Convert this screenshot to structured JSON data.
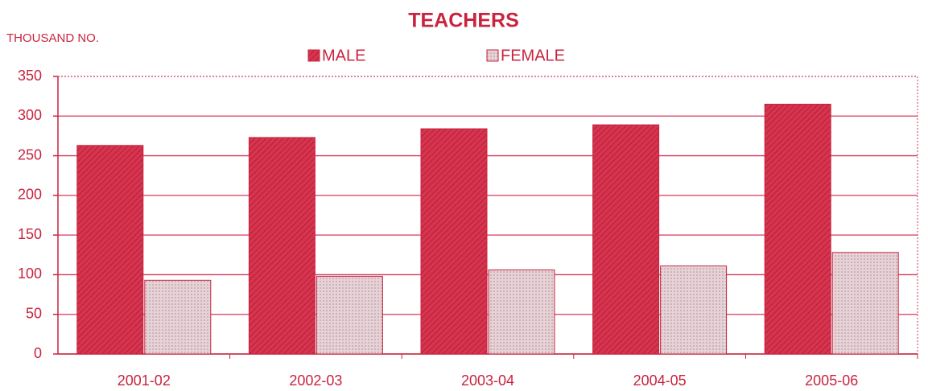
{
  "chart_data": {
    "type": "bar",
    "title": "TEACHERS",
    "y_label": "THOUSAND NO.",
    "categories": [
      "2001-02",
      "2002-03",
      "2003-04",
      "2004-05",
      "2005-06"
    ],
    "series": [
      {
        "name": "MALE",
        "color": "#d8344f",
        "values": [
          263,
          273,
          284,
          289,
          315
        ]
      },
      {
        "name": "FEMALE",
        "color": "#e6d3d7",
        "values": [
          93,
          98,
          106,
          111,
          128
        ]
      }
    ],
    "ylim": [
      0,
      350
    ],
    "yticks": [
      0,
      50,
      100,
      150,
      200,
      250,
      300,
      350
    ],
    "grid": true
  }
}
